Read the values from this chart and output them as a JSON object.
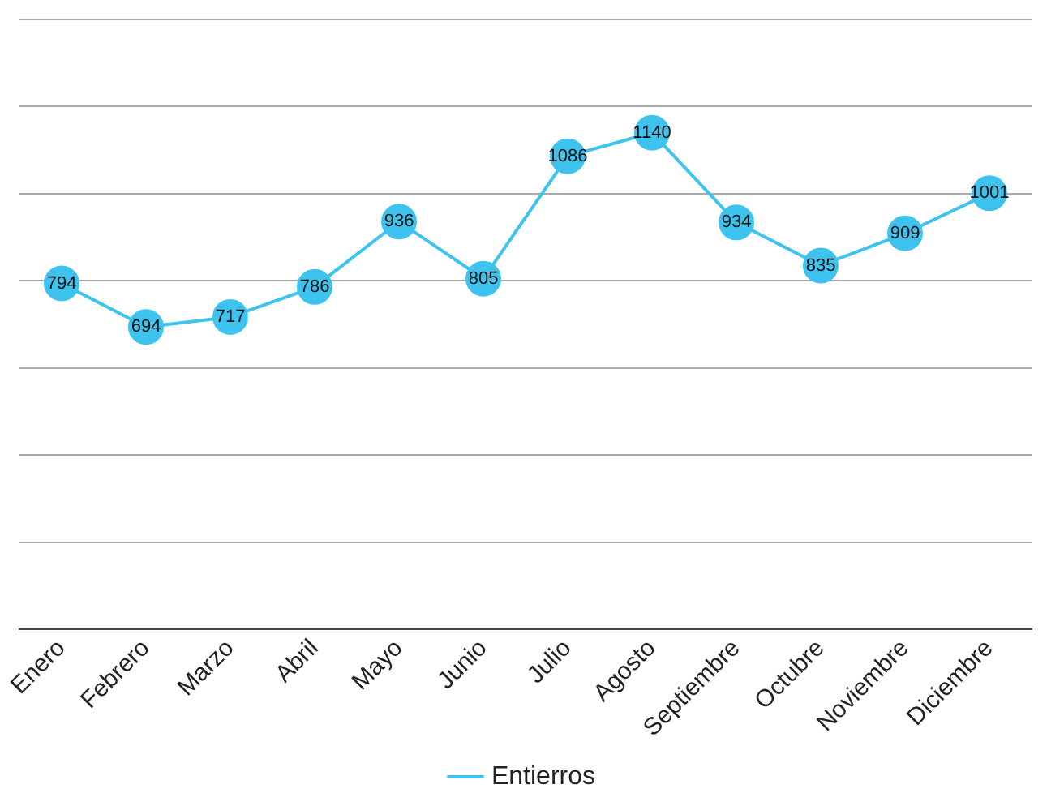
{
  "chart_data": {
    "type": "line",
    "categories": [
      "Enero",
      "Febrero",
      "Marzo",
      "Abril",
      "Mayo",
      "Junio",
      "Julio",
      "Agosto",
      "Septiembre",
      "Octubre",
      "Noviembre",
      "Diciembre"
    ],
    "series": [
      {
        "name": "Entierros",
        "color": "#3ec3ee",
        "values": [
          794,
          694,
          717,
          786,
          936,
          805,
          1086,
          1140,
          934,
          835,
          909,
          1001
        ]
      }
    ],
    "ylim": [
      0,
      1400
    ],
    "yticks": [
      {
        "value": 0,
        "label": null
      },
      {
        "value": 200,
        "label": null
      },
      {
        "value": 400,
        "label": null
      },
      {
        "value": 600,
        "label": null
      },
      {
        "value": 800,
        "label": null
      },
      {
        "value": 1000,
        "label": null
      },
      {
        "value": 1200,
        "label": null
      },
      {
        "value": 1400,
        "label": null
      }
    ],
    "grid": "y",
    "tick_labels": "x",
    "legend": "bottom",
    "marker": "circle",
    "line_style": "solid",
    "data_labels": true
  }
}
